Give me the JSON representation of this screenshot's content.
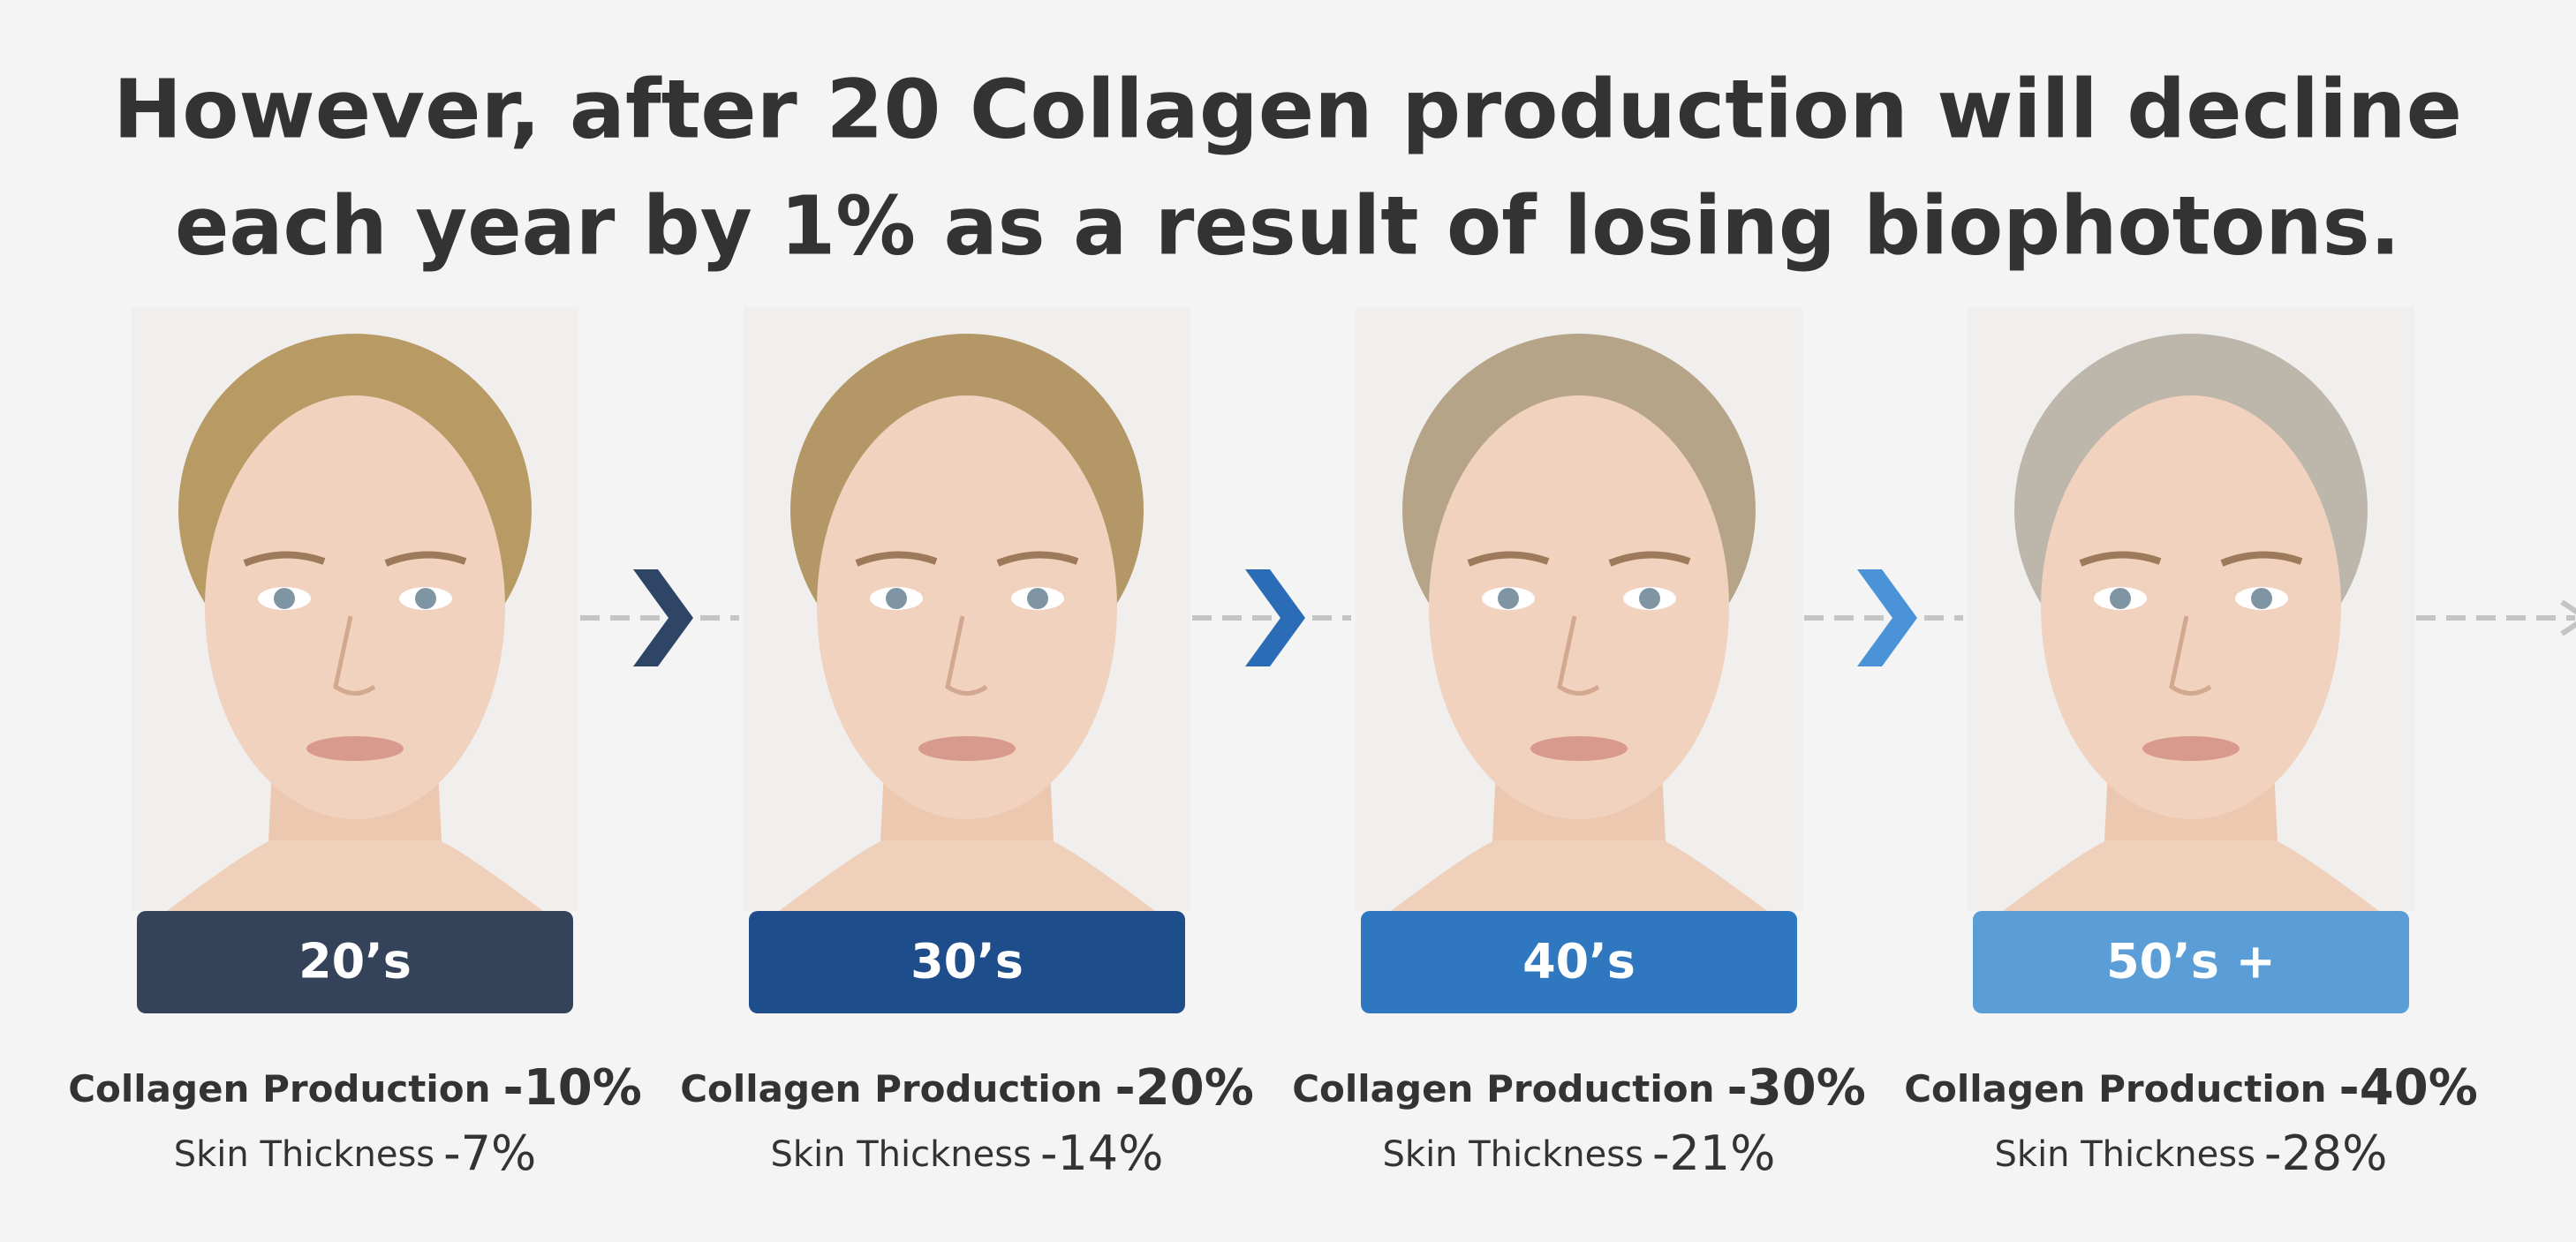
{
  "title": {
    "lines": [
      "However, after 20 Collagen production will decline",
      "each year by 1% as a result of losing biophotons."
    ]
  },
  "panels": [
    {
      "age": "20’s",
      "collagen_label": "Collagen Production",
      "collagen_value": "-10%",
      "skin_label": "Skin Thickness",
      "skin_value": "-7%"
    },
    {
      "age": "30’s",
      "collagen_label": "Collagen Production",
      "collagen_value": "-20%",
      "skin_label": "Skin Thickness",
      "skin_value": "-14%"
    },
    {
      "age": "40’s",
      "collagen_label": "Collagen Production",
      "collagen_value": "-30%",
      "skin_label": "Skin Thickness",
      "skin_value": "-21%"
    },
    {
      "age": "50’s +",
      "collagen_label": "Collagen Production",
      "collagen_value": "-40%",
      "skin_label": "Skin Thickness",
      "skin_value": "-28%"
    }
  ]
}
